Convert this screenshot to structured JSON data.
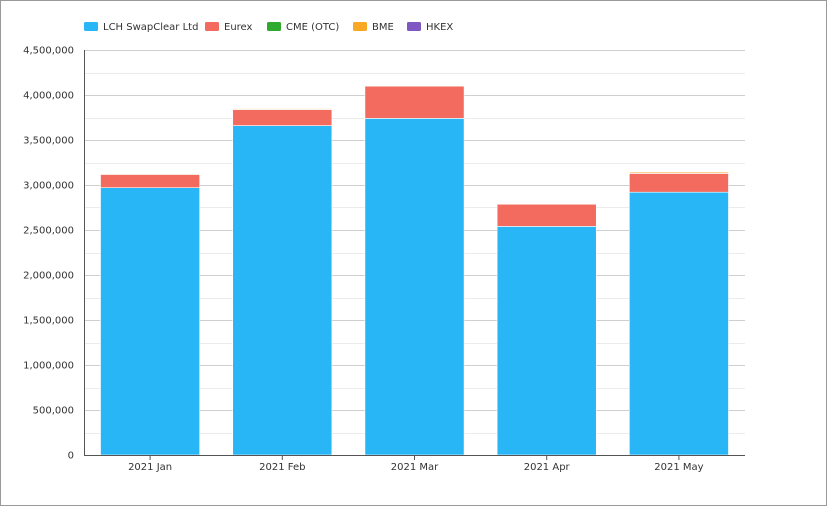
{
  "chart_data": {
    "type": "bar",
    "stacked": true,
    "categories": [
      "2021 Jan",
      "2021 Feb",
      "2021 Mar",
      "2021 Apr",
      "2021 May"
    ],
    "series": [
      {
        "name": "LCH SwapClear Ltd",
        "color": "#29b6f6",
        "values": [
          2970000,
          3660000,
          3740000,
          2540000,
          2920000
        ]
      },
      {
        "name": "Eurex",
        "color": "#f26b5e",
        "values": [
          150000,
          180000,
          360000,
          250000,
          210000
        ]
      },
      {
        "name": "CME (OTC)",
        "color": "#2eaa2e",
        "values": [
          3000,
          5000,
          5000,
          3000,
          5000
        ]
      },
      {
        "name": "BME",
        "color": "#f9a825",
        "values": [
          5000,
          8000,
          6000,
          5000,
          12000
        ]
      },
      {
        "name": "HKEX",
        "color": "#7e57c2",
        "values": [
          0,
          0,
          0,
          0,
          0
        ]
      }
    ],
    "yticks": [
      "0",
      "500,000",
      "1,000,000",
      "1,500,000",
      "2,000,000",
      "2,500,000",
      "3,000,000",
      "3,500,000",
      "4,000,000",
      "4,500,000"
    ],
    "ylim": [
      0,
      4500000
    ],
    "ytick_step": 500000,
    "grid": true,
    "legend": "top-left",
    "title": "",
    "xlabel": "",
    "ylabel": ""
  }
}
